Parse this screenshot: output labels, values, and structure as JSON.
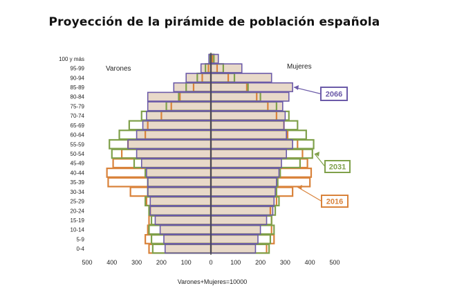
{
  "title": "Proyección de la pirámide de población española",
  "chart_data": {
    "type": "bar",
    "orientation": "horizontal-pyramid",
    "title": "Proyección de la pirámide de población española",
    "xlabel": "Varones+Mujeres=10000",
    "left_label": "Varones",
    "right_label": "Mujeres",
    "xlim": [
      -500,
      500
    ],
    "x_ticks": [
      500,
      400,
      300,
      200,
      100,
      0,
      100,
      200,
      300,
      400,
      500
    ],
    "categories": [
      "100 y más",
      "95-99",
      "90-94",
      "85-89",
      "80-84",
      "75-79",
      "70-74",
      "65-69",
      "60-64",
      "55-59",
      "50-54",
      "45-49",
      "40-44",
      "35-39",
      "30-34",
      "25-29",
      "20-24",
      "15-19",
      "10-14",
      "5-9",
      "0-4"
    ],
    "series": [
      {
        "name": "2066",
        "color": "#6b5aa8",
        "fill": "#ece7f6",
        "varones": [
          8,
          40,
          100,
          150,
          255,
          255,
          260,
          275,
          300,
          335,
          300,
          280,
          260,
          255,
          255,
          245,
          245,
          225,
          205,
          190,
          185
        ],
        "mujeres": [
          30,
          125,
          245,
          330,
          315,
          290,
          300,
          295,
          305,
          330,
          305,
          285,
          275,
          265,
          260,
          255,
          250,
          225,
          200,
          190,
          180
        ]
      },
      {
        "name": "2031",
        "color": "#7fa04a",
        "fill": "#f3f7ea",
        "varones": [
          5,
          22,
          55,
          100,
          130,
          180,
          280,
          330,
          370,
          410,
          400,
          310,
          265,
          255,
          255,
          265,
          250,
          240,
          250,
          240,
          235
        ],
        "mujeres": [
          12,
          50,
          95,
          150,
          200,
          265,
          315,
          350,
          385,
          415,
          410,
          360,
          280,
          270,
          265,
          275,
          260,
          245,
          255,
          240,
          235
        ]
      },
      {
        "name": "2016",
        "color": "#d9823a",
        "fill": "#f9e3cf",
        "varones": [
          3,
          10,
          35,
          70,
          125,
          160,
          200,
          255,
          265,
          335,
          360,
          395,
          420,
          415,
          325,
          260,
          245,
          250,
          255,
          265,
          250
        ],
        "mujeres": [
          6,
          25,
          70,
          145,
          185,
          230,
          265,
          295,
          310,
          350,
          370,
          390,
          405,
          400,
          330,
          265,
          240,
          245,
          245,
          255,
          225
        ]
      }
    ],
    "annotations": [
      "2066",
      "2031",
      "2016"
    ]
  }
}
